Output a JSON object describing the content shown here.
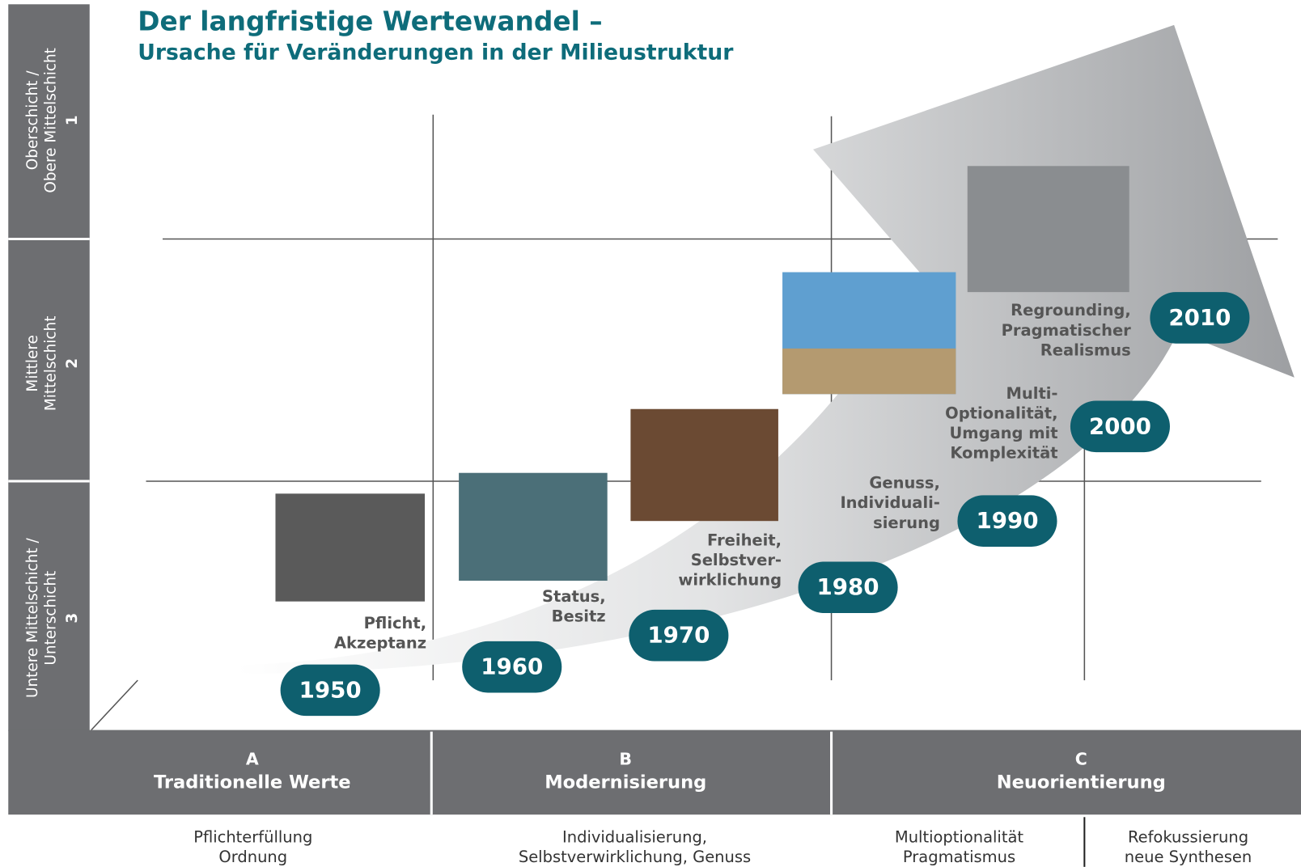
{
  "title": "Der langfristige Wertewandel –",
  "subtitle": "Ursache für Veränderungen in der Milieustruktur",
  "rows": [
    {
      "lines": [
        "Oberschicht /",
        "Obere Mittelschicht"
      ],
      "number": "1"
    },
    {
      "lines": [
        "Mittlere",
        "Mittelschicht"
      ],
      "number": "2"
    },
    {
      "lines": [
        "Untere Mittelschicht /",
        "Unterschicht"
      ],
      "number": "3"
    }
  ],
  "columns": [
    {
      "letter": "A",
      "name": "Traditionelle Werte"
    },
    {
      "letter": "B",
      "name": "Modernisierung"
    },
    {
      "letter": "C",
      "name": "Neuorientierung"
    }
  ],
  "descriptions": [
    [
      "Pflichterfüllung",
      "Ordnung"
    ],
    [
      "Individualisierung,",
      "Selbstverwirklichung, Genuss"
    ],
    [
      "Multioptionalität",
      "Pragmatismus"
    ],
    [
      "Refokussierung",
      "neue Synthesen"
    ]
  ],
  "milestones": [
    "1950",
    "1960",
    "1970",
    "1980",
    "1990",
    "2000",
    "2010"
  ],
  "themes": [
    [
      "Pflicht,",
      "Akzeptanz"
    ],
    [
      "Status,",
      "Besitz"
    ],
    [
      "Freiheit,",
      "Selbstver-",
      "wirklichung"
    ],
    [
      "Genuss,",
      "Individuali-",
      "sierung"
    ],
    [
      "Multi-",
      "Optionalität,",
      "Umgang mit",
      "Komplexität"
    ],
    [
      "Regrounding,",
      "Pragmatischer",
      "Realismus"
    ]
  ]
}
